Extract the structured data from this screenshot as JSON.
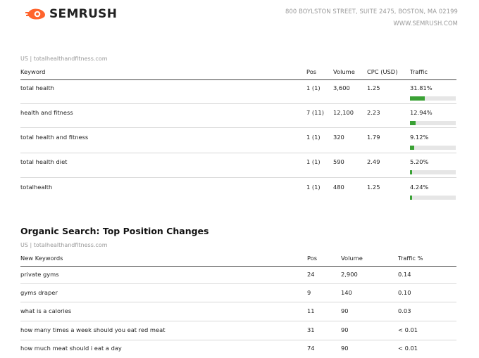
{
  "header": {
    "brand": "SEMRUSH",
    "address": "800 BOYLSTON STREET, SUITE 2475, BOSTON, MA 02199",
    "website": "WWW.SEMRUSH.COM",
    "brand_color": "#ff642d"
  },
  "top_keywords": {
    "database": "US | totalhealthandfitness.com",
    "columns": [
      "Keyword",
      "Pos",
      "Volume",
      "CPC (USD)",
      "Traffic"
    ],
    "rows": [
      {
        "keyword": "total health",
        "pos": "1 (1)",
        "volume": "3,600",
        "cpc": "1.25",
        "traffic": "31.81%",
        "traffic_value": 31.81
      },
      {
        "keyword": "health and fitness",
        "pos": "7 (11)",
        "volume": "12,100",
        "cpc": "2.23",
        "traffic": "12.94%",
        "traffic_value": 12.94
      },
      {
        "keyword": "total health and fitness",
        "pos": "1 (1)",
        "volume": "320",
        "cpc": "1.79",
        "traffic": "9.12%",
        "traffic_value": 9.12
      },
      {
        "keyword": "total health diet",
        "pos": "1 (1)",
        "volume": "590",
        "cpc": "2.49",
        "traffic": "5.20%",
        "traffic_value": 5.2
      },
      {
        "keyword": "totalhealth",
        "pos": "1 (1)",
        "volume": "480",
        "cpc": "1.25",
        "traffic": "4.24%",
        "traffic_value": 4.24
      }
    ],
    "bar_color": "#3aa135"
  },
  "position_changes": {
    "title": "Organic Search: Top Position Changes",
    "database": "US | totalhealthandfitness.com",
    "columns": [
      "New Keywords",
      "Pos",
      "Volume",
      "Traffic  %"
    ],
    "rows": [
      {
        "keyword": "private gyms",
        "pos": "24",
        "volume": "2,900",
        "traffic": "0.14"
      },
      {
        "keyword": "gyms draper",
        "pos": "9",
        "volume": "140",
        "traffic": "0.10"
      },
      {
        "keyword": "what is a calories",
        "pos": "11",
        "volume": "90",
        "traffic": "0.03"
      },
      {
        "keyword": "how many times a week should you eat red meat",
        "pos": "31",
        "volume": "90",
        "traffic": "< 0.01"
      },
      {
        "keyword": "how much meat should i eat a day",
        "pos": "74",
        "volume": "90",
        "traffic": "< 0.01"
      }
    ]
  }
}
